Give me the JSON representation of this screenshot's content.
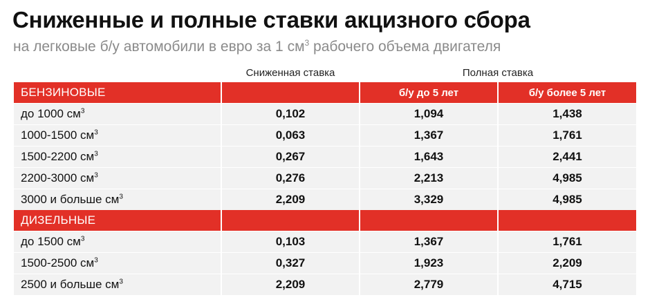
{
  "header": {
    "title": "Сниженные и полные ставки акцизного сбора",
    "subtitle": "на легковые б/у автомобили в евро за 1 см",
    "subtitle_sup": "3",
    "subtitle_tail": " рабочего объема двигателя"
  },
  "columns": {
    "reduced": "Сниженная ставка",
    "full": "Полная ставка",
    "full_sub_1": "б/у до 5 лет",
    "full_sub_2": "б/у более 5 лет"
  },
  "colors": {
    "accent": "#e23027",
    "row_bg": "#f2f2f2",
    "subtitle": "#8a8a8a"
  },
  "sections": [
    {
      "name": "БЕНЗИНОВЫЕ",
      "rows": [
        {
          "label": "до 1000 см",
          "sup": "3",
          "reduced": "0,102",
          "full_under5": "1,094",
          "full_over5": "1,438"
        },
        {
          "label": "1000-1500 см",
          "sup": "3",
          "reduced": "0,063",
          "full_under5": "1,367",
          "full_over5": "1,761"
        },
        {
          "label": "1500-2200 см",
          "sup": "3",
          "reduced": "0,267",
          "full_under5": "1,643",
          "full_over5": "2,441"
        },
        {
          "label": "2200-3000 см",
          "sup": "3",
          "reduced": "0,276",
          "full_under5": "2,213",
          "full_over5": "4,985"
        },
        {
          "label": "3000 и больше см",
          "sup": "3",
          "reduced": "2,209",
          "full_under5": "3,329",
          "full_over5": "4,985"
        }
      ]
    },
    {
      "name": "ДИЗЕЛЬНЫЕ",
      "rows": [
        {
          "label": "до 1500 см",
          "sup": "3",
          "reduced": "0,103",
          "full_under5": "1,367",
          "full_over5": "1,761"
        },
        {
          "label": "1500-2500 см",
          "sup": "3",
          "reduced": "0,327",
          "full_under5": "1,923",
          "full_over5": "2,209"
        },
        {
          "label": "2500 и больше см",
          "sup": "3",
          "reduced": "2,209",
          "full_under5": "2,779",
          "full_over5": "4,715"
        }
      ]
    }
  ]
}
